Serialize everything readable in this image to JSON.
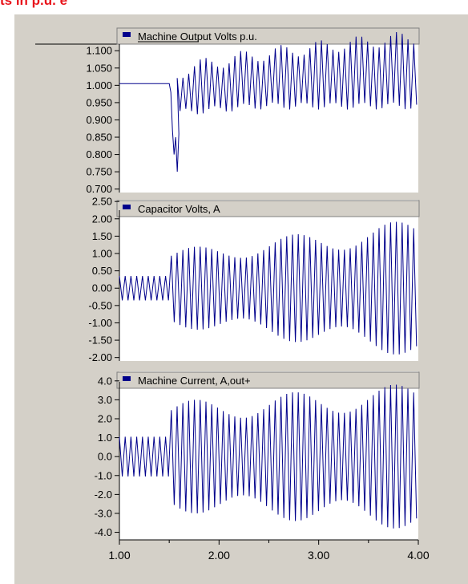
{
  "header": {
    "title": "ts in p.u. e"
  },
  "colors": {
    "trace": "#00008b",
    "panel": "#d4d0c8",
    "plot_bg": "#ffffff",
    "title": "#e8141b"
  },
  "chart_data": [
    {
      "type": "line",
      "title": "",
      "legend": "Machine Output Volts p.u.",
      "legend_placement": "top-center",
      "xlabel": "",
      "ylabel": "",
      "xlim": [
        1.0,
        4.0
      ],
      "ylim": [
        0.69,
        1.14
      ],
      "yticks": [
        "1.100",
        "1.050",
        "1.000",
        "0.950",
        "0.900",
        "0.850",
        "0.800",
        "0.750",
        "0.700"
      ],
      "ytick_values": [
        1.1,
        1.05,
        1.0,
        0.95,
        0.9,
        0.85,
        0.8,
        0.75,
        0.7
      ],
      "grid": false,
      "envelope": {
        "steady_level": 1.005,
        "fault_start": 1.5,
        "fault_end": 1.58,
        "fault_min": 0.75,
        "post_min": 0.94,
        "post_max_start": 1.03,
        "post_max_end": 1.14
      }
    },
    {
      "type": "line",
      "title": "",
      "legend": "Capacitor Volts, A",
      "legend_placement": "top-left",
      "xlabel": "",
      "ylabel": "",
      "xlim": [
        1.0,
        4.0
      ],
      "ylim": [
        -2.1,
        2.55
      ],
      "yticks": [
        "2.50",
        "2.00",
        "1.50",
        "1.00",
        "0.50",
        "0.00",
        "-0.50",
        "-1.00",
        "-1.50",
        "-2.00"
      ],
      "ytick_values": [
        2.5,
        2.0,
        1.5,
        1.0,
        0.5,
        0.0,
        -0.5,
        -1.0,
        -1.5,
        -2.0
      ],
      "grid": false,
      "envelope": {
        "pre_amp": 0.35,
        "post_amp_start": 1.1,
        "post_amp_end": 2.0,
        "step_time": 1.5
      }
    },
    {
      "type": "line",
      "title": "",
      "legend": "Machine Current, A,out+",
      "legend_placement": "top-left",
      "xlabel": "",
      "ylabel": "",
      "xlim": [
        1.0,
        4.0
      ],
      "ylim": [
        -4.4,
        4.5
      ],
      "yticks": [
        "4.0",
        "3.0",
        "2.0",
        "1.0",
        "0.0",
        "-1.0",
        "-2.0",
        "-3.0",
        "-4.0"
      ],
      "ytick_values": [
        4.0,
        3.0,
        2.0,
        1.0,
        0.0,
        -1.0,
        -2.0,
        -3.0,
        -4.0
      ],
      "grid": false,
      "envelope": {
        "pre_amp": 1.05,
        "post_amp_start": 2.9,
        "post_amp_end": 3.9,
        "step_time": 1.5
      }
    }
  ],
  "x_axis": {
    "ticks": [
      "1.00",
      "2.00",
      "3.00",
      "4.00"
    ],
    "tick_values": [
      1.0,
      2.0,
      3.0,
      4.0
    ],
    "minor_tick_values": [
      1.5,
      2.5,
      3.5
    ]
  }
}
